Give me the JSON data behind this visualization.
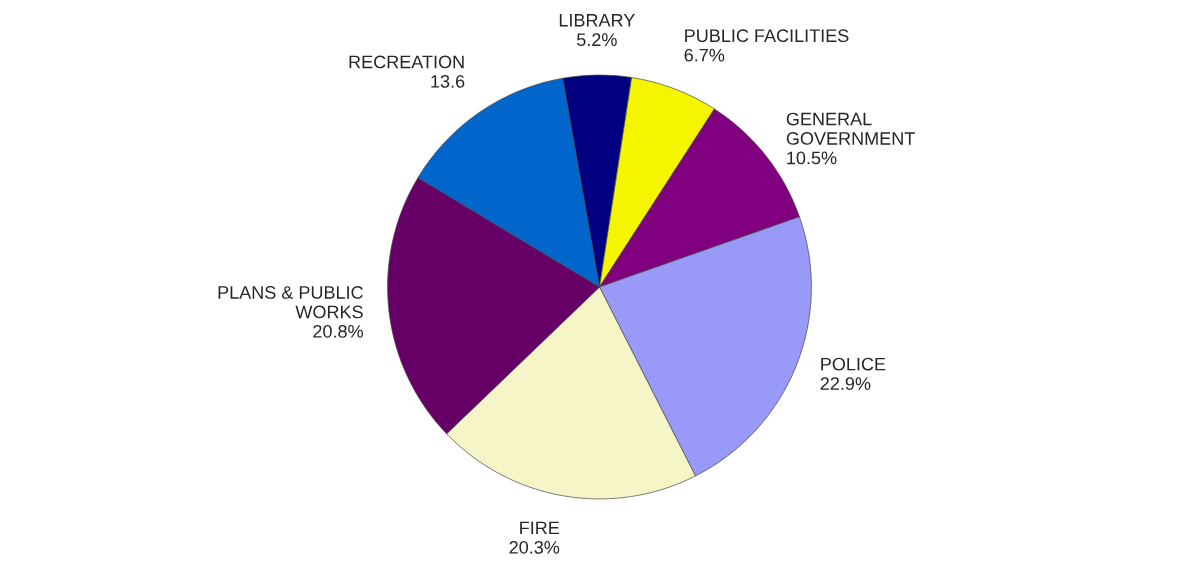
{
  "chart_data": {
    "type": "pie",
    "categories": [
      "LIBRARY",
      "PUBLIC FACILITIES",
      "GENERAL\nGOVERNMENT",
      "POLICE",
      "FIRE",
      "PLANS & PUBLIC\nWORKS",
      "RECREATION"
    ],
    "values": [
      5.2,
      6.7,
      10.5,
      22.9,
      20.3,
      20.8,
      13.6
    ],
    "value_labels": [
      "5.2%",
      "6.7%",
      "10.5%",
      "22.9%",
      "20.3%",
      "20.8%",
      "13.6"
    ],
    "colors": [
      "#000080",
      "#f5f500",
      "#800080",
      "#9999f8",
      "#f5f5c8",
      "#660066",
      "#0066cc"
    ]
  }
}
